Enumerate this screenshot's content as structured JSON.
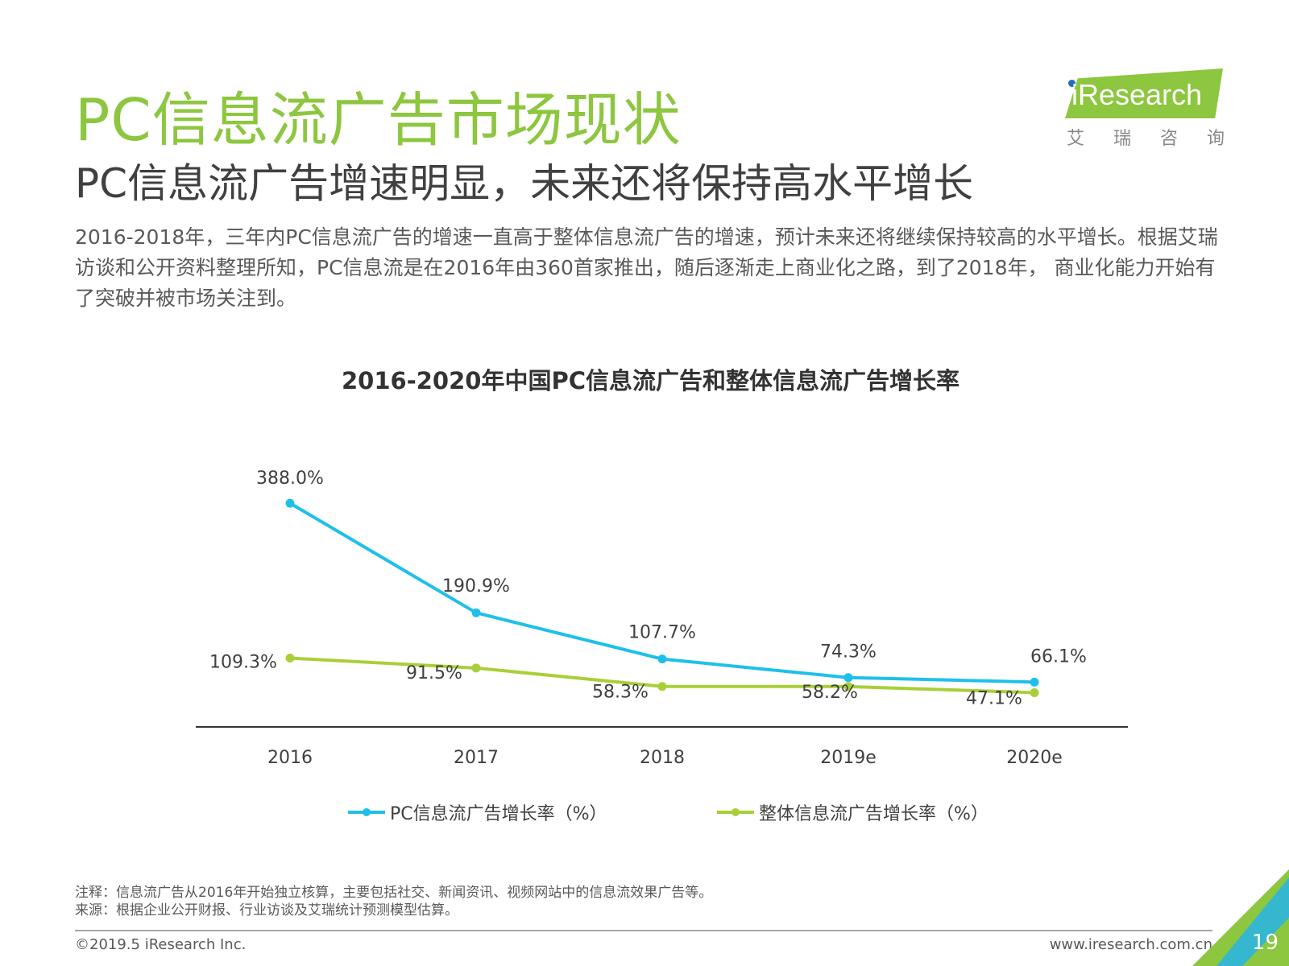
{
  "header": {
    "title": "PC信息流广告市场现状",
    "subtitle": "PC信息流广告增速明显，未来还将保持高水平增长",
    "intro": "2016-2018年，三年内PC信息流广告的增速一直高于整体信息流广告的增速，预计未来还将继续保持较高的水平增长。根据艾瑞访谈和公开资料整理所知，PC信息流是在2016年由360首家推出，随后逐渐走上商业化之路，到了2018年， 商业化能力开始有了突破并被市场关注到。"
  },
  "logo": {
    "text": "iResearch",
    "cn_chars": [
      "艾",
      "瑞",
      "咨",
      "询"
    ]
  },
  "chart_data": {
    "type": "line",
    "title": "2016-2020年中国PC信息流广告和整体信息流广告增长率",
    "categories": [
      "2016",
      "2017",
      "2018",
      "2019e",
      "2020e"
    ],
    "series": [
      {
        "name": "PC信息流广告增长率（%）",
        "values": [
          388.0,
          190.9,
          107.7,
          74.3,
          66.1
        ],
        "labels": [
          "388.0%",
          "190.9%",
          "107.7%",
          "74.3%",
          "66.1%"
        ],
        "color": "#1ec0ea"
      },
      {
        "name": "整体信息流广告增长率（%）",
        "values": [
          109.3,
          91.5,
          58.3,
          58.2,
          47.1
        ],
        "labels": [
          "109.3%",
          "91.5%",
          "58.3%",
          "58.2%",
          "47.1%"
        ],
        "color": "#a9cf38"
      }
    ],
    "xlabel": "",
    "ylabel": "",
    "ylim": [
      0,
      420
    ],
    "grid": false,
    "legend_position": "bottom"
  },
  "notes": {
    "note": "注释：信息流广告从2016年开始独立核算，主要包括社交、新闻资讯、视频网站中的信息流效果广告等。",
    "source": "来源：根据企业公开财报、行业访谈及艾瑞统计预测模型估算。"
  },
  "footer": {
    "copyright": "©2019.5 iResearch Inc.",
    "website": "www.iresearch.com.cn",
    "page_number": "19"
  },
  "colors": {
    "brand_green": "#8dc63f",
    "pc_line": "#1ec0ea",
    "overall_line": "#a9cf38"
  }
}
